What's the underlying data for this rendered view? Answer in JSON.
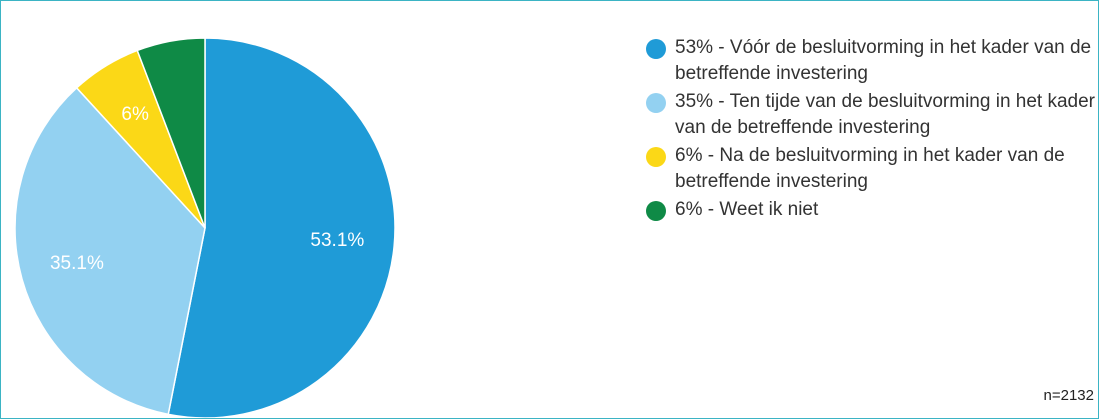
{
  "chart_data": {
    "type": "pie",
    "categories": [
      "53% - Vóór de besluitvorming in het kader van de betreffende investering",
      "35% - Ten tijde van de besluitvorming in het kader van de betreffende investering",
      "6% - Na de besluitvorming in het kader van de betreffende investering",
      "6% - Weet ik niet"
    ],
    "values": [
      53.1,
      35.1,
      6,
      5.8
    ],
    "value_labels": [
      "53.1%",
      "35.1%",
      "6%",
      null
    ],
    "colors": [
      "#1f9bd7",
      "#93d1f1",
      "#fbd817",
      "#0f8a46"
    ],
    "legend": "right",
    "annotation": "n=2132"
  }
}
